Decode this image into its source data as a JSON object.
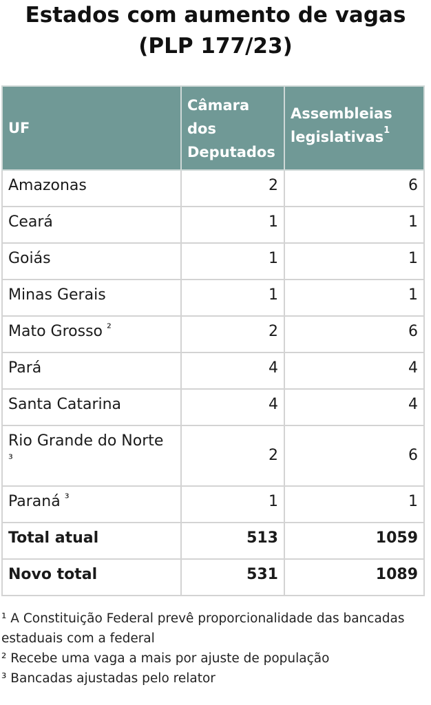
{
  "title": {
    "line1": "Estados com aumento de vagas",
    "line2": "(PLP 177/23)"
  },
  "table": {
    "headers": {
      "uf": "UF",
      "camara": "Câmara dos Deputados",
      "assembleias": "Assembleias legislativas",
      "assembleias_sup": "1"
    },
    "rows": [
      {
        "uf": "Amazonas",
        "sup": "",
        "camara": "2",
        "assembleias": "6"
      },
      {
        "uf": "Ceará",
        "sup": "",
        "camara": "1",
        "assembleias": "1"
      },
      {
        "uf": "Goiás",
        "sup": "",
        "camara": "1",
        "assembleias": "1"
      },
      {
        "uf": "Minas Gerais",
        "sup": "",
        "camara": "1",
        "assembleias": "1"
      },
      {
        "uf": "Mato Grosso",
        "sup": "²",
        "camara": "2",
        "assembleias": "6"
      },
      {
        "uf": "Pará",
        "sup": "",
        "camara": "4",
        "assembleias": "4"
      },
      {
        "uf": "Santa Catarina",
        "sup": "",
        "camara": "4",
        "assembleias": "4"
      },
      {
        "uf": "Rio Grande do Norte",
        "sup": "³",
        "camara": "2",
        "assembleias": "6"
      },
      {
        "uf": "Paraná",
        "sup": "³",
        "camara": "1",
        "assembleias": "1"
      }
    ],
    "totals": [
      {
        "label": "Total atual",
        "camara": "513",
        "assembleias": "1059"
      },
      {
        "label": "Novo total",
        "camara": "531",
        "assembleias": "1089"
      }
    ]
  },
  "footnotes": [
    "¹ A Constituição Federal prevê proporcionalidade das bancadas estaduais com a federal",
    "² Recebe uma vaga a mais por ajuste de população",
    "³ Bancadas ajustadas pelo relator"
  ],
  "colors": {
    "header_bg": "#709996",
    "border": "#d3d3d3"
  }
}
